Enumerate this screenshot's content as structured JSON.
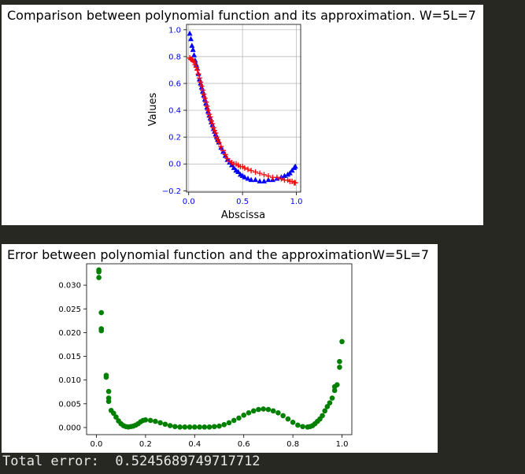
{
  "colors": {
    "background": "#272822",
    "panel": "#ffffff",
    "blue": "#0000ff",
    "red": "#ff0000",
    "green": "#008000",
    "grid": "#b0b0b0"
  },
  "chart_data": [
    {
      "type": "scatter",
      "title": "Comparison between polynomial function and its approximation. W=5L=7",
      "xlabel": "Abscissa",
      "ylabel": "Values",
      "xlim": [
        -0.02,
        1.04
      ],
      "ylim": [
        -0.21,
        1.04
      ],
      "xticks": [
        "0.0",
        "0.5",
        "1.0"
      ],
      "yticks": [
        "1.0",
        "0.8",
        "0.6",
        "0.4",
        "0.2",
        "0.0",
        "−0.2"
      ],
      "grid": true,
      "tick_color": "#0000ff",
      "series": [
        {
          "marker": "triangle",
          "color": "#0000ff",
          "points": [
            [
              0.01,
              0.97
            ],
            [
              0.02,
              0.93
            ],
            [
              0.03,
              0.88
            ],
            [
              0.04,
              0.85
            ],
            [
              0.05,
              0.81
            ],
            [
              0.06,
              0.77
            ],
            [
              0.07,
              0.74
            ],
            [
              0.08,
              0.71
            ],
            [
              0.09,
              0.67
            ],
            [
              0.1,
              0.63
            ],
            [
              0.11,
              0.6
            ],
            [
              0.12,
              0.57
            ],
            [
              0.13,
              0.54
            ],
            [
              0.14,
              0.51
            ],
            [
              0.15,
              0.48
            ],
            [
              0.16,
              0.45
            ],
            [
              0.17,
              0.42
            ],
            [
              0.18,
              0.39
            ],
            [
              0.19,
              0.36
            ],
            [
              0.2,
              0.34
            ],
            [
              0.21,
              0.31
            ],
            [
              0.22,
              0.29
            ],
            [
              0.23,
              0.26
            ],
            [
              0.24,
              0.24
            ],
            [
              0.25,
              0.22
            ],
            [
              0.26,
              0.2
            ],
            [
              0.27,
              0.18
            ],
            [
              0.28,
              0.16
            ],
            [
              0.3,
              0.12
            ],
            [
              0.32,
              0.09
            ],
            [
              0.34,
              0.06
            ],
            [
              0.36,
              0.03
            ],
            [
              0.38,
              0.01
            ],
            [
              0.4,
              -0.01
            ],
            [
              0.42,
              -0.03
            ],
            [
              0.44,
              -0.05
            ],
            [
              0.46,
              -0.06
            ],
            [
              0.48,
              -0.08
            ],
            [
              0.5,
              -0.09
            ],
            [
              0.52,
              -0.1
            ],
            [
              0.55,
              -0.11
            ],
            [
              0.58,
              -0.12
            ],
            [
              0.62,
              -0.12
            ],
            [
              0.66,
              -0.13
            ],
            [
              0.7,
              -0.13
            ],
            [
              0.74,
              -0.12
            ],
            [
              0.78,
              -0.12
            ],
            [
              0.82,
              -0.11
            ],
            [
              0.86,
              -0.1
            ],
            [
              0.89,
              -0.09
            ],
            [
              0.92,
              -0.08
            ],
            [
              0.94,
              -0.07
            ],
            [
              0.96,
              -0.05
            ],
            [
              0.98,
              -0.03
            ],
            [
              0.99,
              -0.02
            ]
          ]
        },
        {
          "marker": "plus",
          "color": "#ff0000",
          "points": [
            [
              0.01,
              0.79
            ],
            [
              0.02,
              0.78
            ],
            [
              0.03,
              0.78
            ],
            [
              0.04,
              0.77
            ],
            [
              0.05,
              0.76
            ],
            [
              0.06,
              0.74
            ],
            [
              0.07,
              0.72
            ],
            [
              0.08,
              0.7
            ],
            [
              0.09,
              0.67
            ],
            [
              0.1,
              0.64
            ],
            [
              0.11,
              0.61
            ],
            [
              0.12,
              0.58
            ],
            [
              0.13,
              0.55
            ],
            [
              0.14,
              0.52
            ],
            [
              0.15,
              0.49
            ],
            [
              0.16,
              0.46
            ],
            [
              0.17,
              0.43
            ],
            [
              0.18,
              0.4
            ],
            [
              0.19,
              0.37
            ],
            [
              0.2,
              0.35
            ],
            [
              0.21,
              0.32
            ],
            [
              0.22,
              0.3
            ],
            [
              0.23,
              0.27
            ],
            [
              0.24,
              0.25
            ],
            [
              0.25,
              0.23
            ],
            [
              0.26,
              0.2
            ],
            [
              0.27,
              0.18
            ],
            [
              0.28,
              0.16
            ],
            [
              0.3,
              0.13
            ],
            [
              0.32,
              0.1
            ],
            [
              0.34,
              0.07
            ],
            [
              0.36,
              0.04
            ],
            [
              0.38,
              0.02
            ],
            [
              0.4,
              0.01
            ],
            [
              0.42,
              0.0
            ],
            [
              0.44,
              0.0
            ],
            [
              0.46,
              -0.01
            ],
            [
              0.48,
              -0.02
            ],
            [
              0.5,
              -0.02
            ],
            [
              0.52,
              -0.03
            ],
            [
              0.55,
              -0.04
            ],
            [
              0.58,
              -0.05
            ],
            [
              0.62,
              -0.06
            ],
            [
              0.66,
              -0.07
            ],
            [
              0.7,
              -0.08
            ],
            [
              0.74,
              -0.09
            ],
            [
              0.78,
              -0.1
            ],
            [
              0.82,
              -0.1
            ],
            [
              0.86,
              -0.11
            ],
            [
              0.89,
              -0.12
            ],
            [
              0.92,
              -0.12
            ],
            [
              0.94,
              -0.13
            ],
            [
              0.96,
              -0.13
            ],
            [
              0.98,
              -0.14
            ],
            [
              0.99,
              -0.14
            ]
          ]
        }
      ]
    },
    {
      "type": "scatter",
      "title": "Error between polynomial function and the approximationW=5L=7",
      "xlim": [
        -0.04,
        1.04
      ],
      "ylim": [
        -0.0015,
        0.0345
      ],
      "xticks": [
        "0.0",
        "0.2",
        "0.4",
        "0.6",
        "0.8",
        "1.0"
      ],
      "yticks": [
        "0.030",
        "0.025",
        "0.020",
        "0.015",
        "0.010",
        "0.005",
        "0.000"
      ],
      "grid": false,
      "tick_color": "#000000",
      "series": [
        {
          "marker": "circle",
          "color": "#008000",
          "points": [
            [
              0.01,
              0.0332
            ],
            [
              0.01,
              0.0328
            ],
            [
              0.01,
              0.0316
            ],
            [
              0.02,
              0.0242
            ],
            [
              0.02,
              0.0208
            ],
            [
              0.02,
              0.0204
            ],
            [
              0.04,
              0.011
            ],
            [
              0.04,
              0.0106
            ],
            [
              0.05,
              0.0076
            ],
            [
              0.05,
              0.0062
            ],
            [
              0.05,
              0.0055
            ],
            [
              0.06,
              0.0036
            ],
            [
              0.07,
              0.003
            ],
            [
              0.08,
              0.0022
            ],
            [
              0.09,
              0.0014
            ],
            [
              0.1,
              0.0008
            ],
            [
              0.11,
              0.0004
            ],
            [
              0.12,
              0.0002
            ],
            [
              0.13,
              0.0001
            ],
            [
              0.14,
              0.0002
            ],
            [
              0.15,
              0.0003
            ],
            [
              0.16,
              0.0005
            ],
            [
              0.17,
              0.0008
            ],
            [
              0.18,
              0.0012
            ],
            [
              0.19,
              0.0015
            ],
            [
              0.2,
              0.0016
            ],
            [
              0.22,
              0.0015
            ],
            [
              0.24,
              0.0013
            ],
            [
              0.26,
              0.001
            ],
            [
              0.28,
              0.0007
            ],
            [
              0.3,
              0.0004
            ],
            [
              0.32,
              0.0002
            ],
            [
              0.34,
              0.0001
            ],
            [
              0.36,
              0.0001
            ],
            [
              0.38,
              0.0001
            ],
            [
              0.4,
              0.0001
            ],
            [
              0.42,
              0.0001
            ],
            [
              0.44,
              0.0001
            ],
            [
              0.46,
              0.0001
            ],
            [
              0.48,
              0.0002
            ],
            [
              0.5,
              0.0003
            ],
            [
              0.52,
              0.0006
            ],
            [
              0.54,
              0.001
            ],
            [
              0.56,
              0.0015
            ],
            [
              0.58,
              0.002
            ],
            [
              0.6,
              0.0026
            ],
            [
              0.62,
              0.0031
            ],
            [
              0.64,
              0.0035
            ],
            [
              0.66,
              0.0038
            ],
            [
              0.68,
              0.0039
            ],
            [
              0.7,
              0.0038
            ],
            [
              0.72,
              0.0035
            ],
            [
              0.74,
              0.0031
            ],
            [
              0.76,
              0.0025
            ],
            [
              0.78,
              0.0018
            ],
            [
              0.8,
              0.0011
            ],
            [
              0.82,
              0.0005
            ],
            [
              0.84,
              0.0002
            ],
            [
              0.86,
              0.0001
            ],
            [
              0.87,
              0.0002
            ],
            [
              0.88,
              0.0004
            ],
            [
              0.89,
              0.0008
            ],
            [
              0.9,
              0.0013
            ],
            [
              0.91,
              0.0018
            ],
            [
              0.92,
              0.0025
            ],
            [
              0.93,
              0.0035
            ],
            [
              0.94,
              0.0044
            ],
            [
              0.95,
              0.0052
            ],
            [
              0.96,
              0.0062
            ],
            [
              0.97,
              0.0078
            ],
            [
              0.97,
              0.0086
            ],
            [
              0.98,
              0.009
            ],
            [
              0.99,
              0.0127
            ],
            [
              0.99,
              0.0139
            ],
            [
              1.0,
              0.0181
            ]
          ]
        }
      ]
    }
  ],
  "output": {
    "label": "Total error:",
    "value": "0.5245689749717712"
  }
}
